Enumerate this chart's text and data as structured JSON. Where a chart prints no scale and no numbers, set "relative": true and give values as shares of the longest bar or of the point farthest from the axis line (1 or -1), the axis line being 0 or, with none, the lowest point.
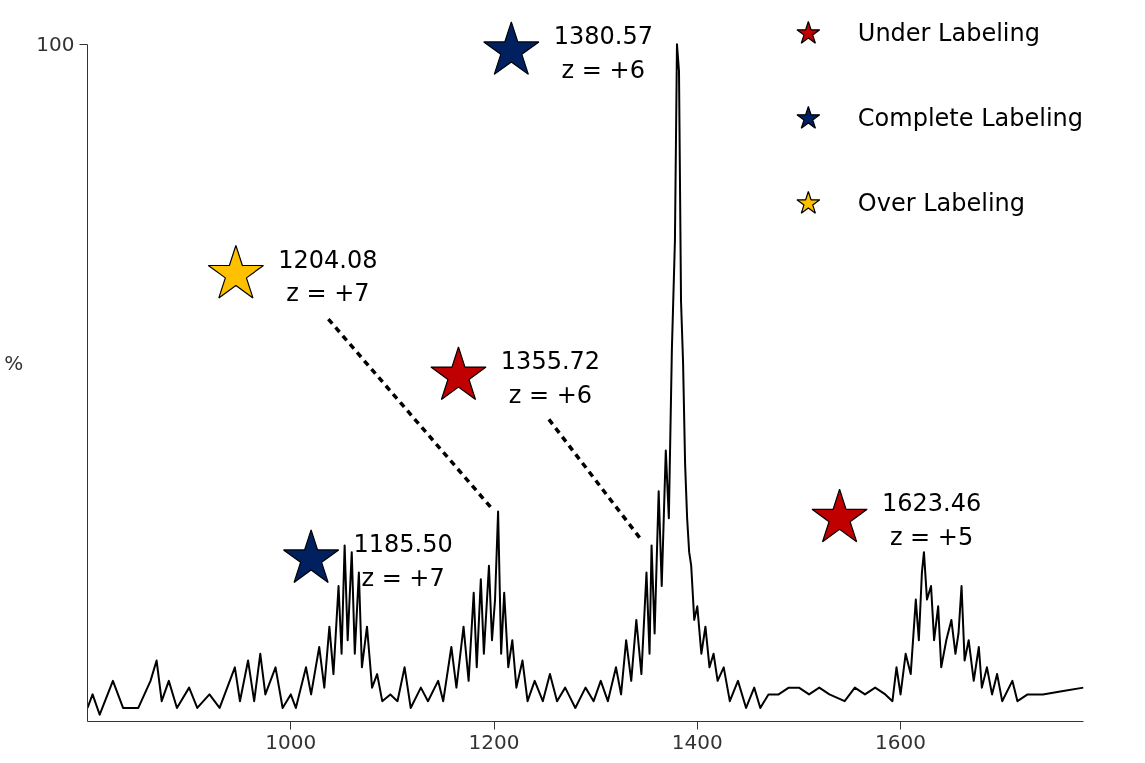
{
  "chart_data": {
    "type": "line",
    "relative": true,
    "xlim": [
      800,
      1780
    ],
    "xticks": [
      1000,
      1200,
      1400,
      1600
    ],
    "ylabel": "%",
    "grid": false,
    "legend": "top right",
    "series": [
      {
        "color": "#000000",
        "line_style": "solid",
        "marker": "none",
        "x": [
          800,
          805,
          812,
          825,
          835,
          850,
          862,
          868,
          873,
          880,
          888,
          900,
          908,
          920,
          930,
          945,
          950,
          958,
          964,
          970,
          975,
          985,
          992,
          1000,
          1005,
          1015,
          1020,
          1028,
          1033,
          1038,
          1042,
          1047,
          1050,
          1053,
          1056,
          1060,
          1063,
          1067,
          1070,
          1075,
          1080,
          1085,
          1090,
          1098,
          1105,
          1112,
          1118,
          1128,
          1135,
          1145,
          1150,
          1158,
          1163,
          1170,
          1175,
          1180,
          1183,
          1187,
          1190,
          1195,
          1198,
          1201,
          1204,
          1207,
          1210,
          1214,
          1218,
          1222,
          1228,
          1233,
          1240,
          1248,
          1255,
          1262,
          1270,
          1280,
          1290,
          1298,
          1305,
          1312,
          1320,
          1325,
          1330,
          1335,
          1340,
          1345,
          1350,
          1353,
          1355,
          1358,
          1362,
          1365,
          1369,
          1372,
          1375,
          1378,
          1380,
          1382,
          1384,
          1386,
          1388,
          1390,
          1392,
          1394,
          1397,
          1400,
          1404,
          1408,
          1412,
          1416,
          1420,
          1426,
          1432,
          1440,
          1448,
          1456,
          1462,
          1470,
          1480,
          1490,
          1500,
          1510,
          1520,
          1530,
          1545,
          1555,
          1565,
          1575,
          1585,
          1592,
          1596,
          1600,
          1605,
          1610,
          1615,
          1618,
          1621,
          1623,
          1626,
          1630,
          1633,
          1637,
          1640,
          1645,
          1650,
          1654,
          1657,
          1660,
          1663,
          1667,
          1672,
          1677,
          1680,
          1685,
          1690,
          1695,
          1700,
          1710,
          1715,
          1725,
          1740,
          1760,
          1780
        ],
        "values": [
          0.02,
          0.04,
          0.01,
          0.06,
          0.02,
          0.02,
          0.06,
          0.09,
          0.03,
          0.06,
          0.02,
          0.05,
          0.02,
          0.04,
          0.02,
          0.08,
          0.03,
          0.09,
          0.03,
          0.1,
          0.04,
          0.08,
          0.02,
          0.04,
          0.02,
          0.08,
          0.04,
          0.11,
          0.05,
          0.14,
          0.07,
          0.2,
          0.1,
          0.26,
          0.12,
          0.25,
          0.1,
          0.22,
          0.08,
          0.14,
          0.05,
          0.07,
          0.03,
          0.04,
          0.03,
          0.08,
          0.02,
          0.05,
          0.03,
          0.06,
          0.03,
          0.11,
          0.05,
          0.14,
          0.06,
          0.19,
          0.08,
          0.21,
          0.1,
          0.23,
          0.12,
          0.18,
          0.31,
          0.1,
          0.19,
          0.08,
          0.12,
          0.05,
          0.09,
          0.03,
          0.06,
          0.03,
          0.07,
          0.03,
          0.05,
          0.02,
          0.05,
          0.03,
          0.06,
          0.03,
          0.08,
          0.04,
          0.12,
          0.06,
          0.15,
          0.07,
          0.22,
          0.1,
          0.26,
          0.13,
          0.34,
          0.2,
          0.4,
          0.3,
          0.55,
          0.71,
          1,
          0.96,
          0.62,
          0.53,
          0.38,
          0.3,
          0.25,
          0.23,
          0.15,
          0.17,
          0.1,
          0.14,
          0.08,
          0.1,
          0.06,
          0.08,
          0.03,
          0.06,
          0.02,
          0.05,
          0.02,
          0.04,
          0.04,
          0.05,
          0.05,
          0.04,
          0.05,
          0.04,
          0.03,
          0.05,
          0.04,
          0.05,
          0.04,
          0.03,
          0.08,
          0.04,
          0.1,
          0.07,
          0.18,
          0.12,
          0.22,
          0.25,
          0.18,
          0.2,
          0.12,
          0.17,
          0.08,
          0.12,
          0.15,
          0.1,
          0.13,
          0.2,
          0.09,
          0.12,
          0.06,
          0.11,
          0.05,
          0.08,
          0.04,
          0.07,
          0.03,
          0.06,
          0.03,
          0.04,
          0.04,
          0.045,
          0.05
        ]
      },
      {
        "color": "#000000",
        "line_style": "dashed",
        "marker": "none",
        "x": [
          1037,
          1197
        ],
        "values": [
          0.594,
          0.316
        ]
      },
      {
        "color": "#000000",
        "line_style": "dashed",
        "marker": "none",
        "x": [
          1254,
          1345
        ],
        "values": [
          0.446,
          0.268
        ]
      },
      {
        "type": "scatter",
        "name": "Under Labeling",
        "color": "#c00000",
        "marker": "star",
        "x": [
          1165,
          1540
        ],
        "values": [
          0.51,
          0.3
        ]
      },
      {
        "type": "scatter",
        "name": "Complete Labeling",
        "color": "#002060",
        "marker": "star",
        "x": [
          1217,
          1020
        ],
        "values": [
          0.99,
          0.24
        ]
      },
      {
        "type": "scatter",
        "name": "Over Labeling",
        "color": "#ffc000",
        "marker": "star",
        "x": [
          946
        ],
        "values": [
          0.66
        ]
      }
    ],
    "annotations": [
      "1355.72\nz = +6",
      "1623.46\nz = +5",
      "1380.57\nz = +6",
      "1185.50\nz = +7",
      "1204.08\nz = +7",
      "100"
    ]
  }
}
